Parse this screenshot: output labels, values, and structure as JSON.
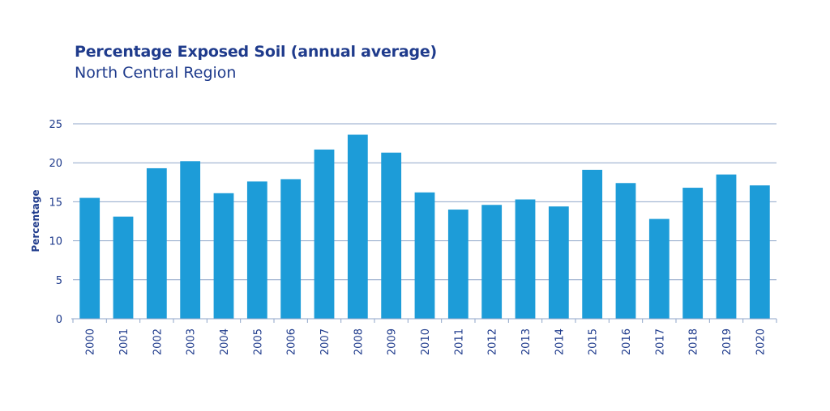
{
  "chart_data": {
    "type": "bar",
    "title": "Percentage Exposed Soil (annual average)",
    "subtitle": "North Central Region",
    "ylabel": "Percentage",
    "xlabel": "",
    "ylim": [
      0,
      25
    ],
    "yticks": [
      0,
      5,
      10,
      15,
      20,
      25
    ],
    "grid": true,
    "categories": [
      "2000",
      "2001",
      "2002",
      "2003",
      "2004",
      "2005",
      "2006",
      "2007",
      "2008",
      "2009",
      "2010",
      "2011",
      "2012",
      "2013",
      "2014",
      "2015",
      "2016",
      "2017",
      "2018",
      "2019",
      "2020"
    ],
    "values": [
      15.5,
      13.1,
      19.3,
      20.2,
      16.1,
      17.6,
      17.9,
      21.7,
      23.6,
      21.3,
      16.2,
      14.0,
      14.6,
      15.3,
      14.4,
      19.1,
      17.4,
      12.8,
      16.8,
      18.5,
      17.1
    ],
    "colors": {
      "bar": "#1d9cd8",
      "text": "#1f3b8c",
      "grid": "#8fa6c9"
    }
  }
}
